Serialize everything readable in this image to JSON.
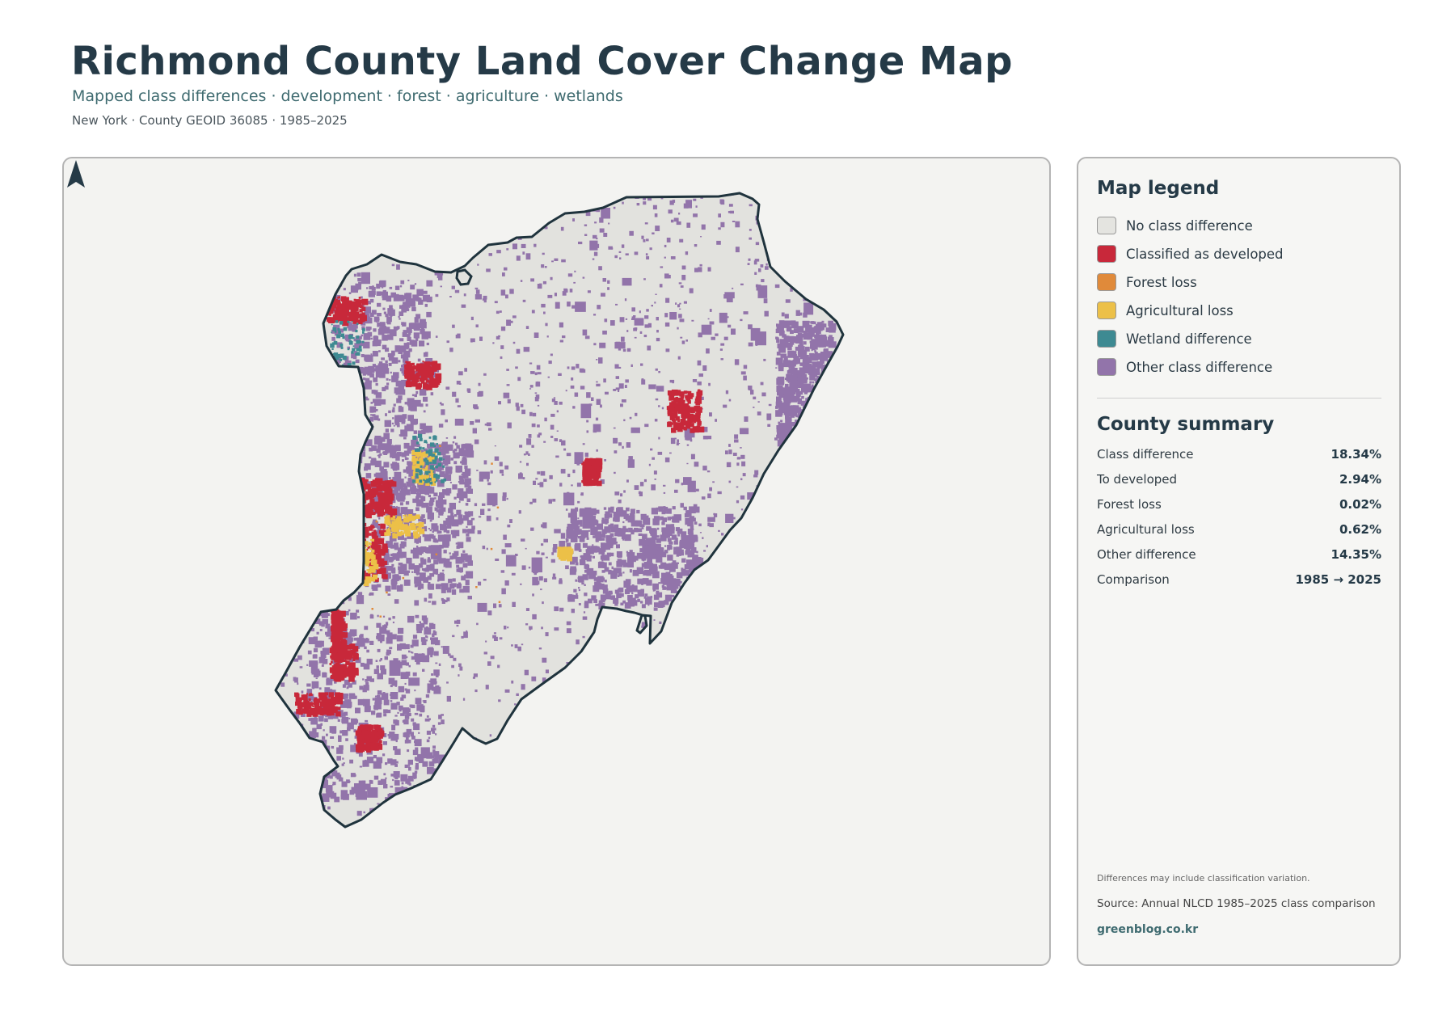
{
  "header": {
    "title": "Richmond County Land Cover Change Map",
    "subtitle": "Mapped class differences · development · forest · agriculture · wetlands",
    "meta": "New York · County GEOID 36085 · 1985–2025"
  },
  "map": {
    "north_label": "N",
    "colors": {
      "background": "#f3f3f1",
      "no_change": "#e2e2de",
      "outline": "#1f333d",
      "developed": "#c8283a",
      "forest_loss": "#e08a3a",
      "agricultural_loss": "#ecc048",
      "wetland": "#3e8a92",
      "other": "#9274aa"
    }
  },
  "legend": {
    "title": "Map legend",
    "items": [
      {
        "label": "No class difference",
        "color": "#e4e4e0"
      },
      {
        "label": "Classified as developed",
        "color": "#c8283a"
      },
      {
        "label": "Forest loss",
        "color": "#e08a3a"
      },
      {
        "label": "Agricultural loss",
        "color": "#ecc048"
      },
      {
        "label": "Wetland difference",
        "color": "#3e8a92"
      },
      {
        "label": "Other class difference",
        "color": "#9274aa"
      }
    ]
  },
  "summary": {
    "title": "County summary",
    "rows": [
      {
        "label": "Class difference",
        "value": "18.34%"
      },
      {
        "label": "To developed",
        "value": "2.94%"
      },
      {
        "label": "Forest loss",
        "value": "0.02%"
      },
      {
        "label": "Agricultural loss",
        "value": "0.62%"
      },
      {
        "label": "Other difference",
        "value": "14.35%"
      },
      {
        "label": "Comparison",
        "value": "1985 → 2025"
      }
    ]
  },
  "footer": {
    "note": "Differences may include classification variation.",
    "source": "Source: Annual NLCD 1985–2025 class comparison",
    "site": "greenblog.co.kr"
  }
}
